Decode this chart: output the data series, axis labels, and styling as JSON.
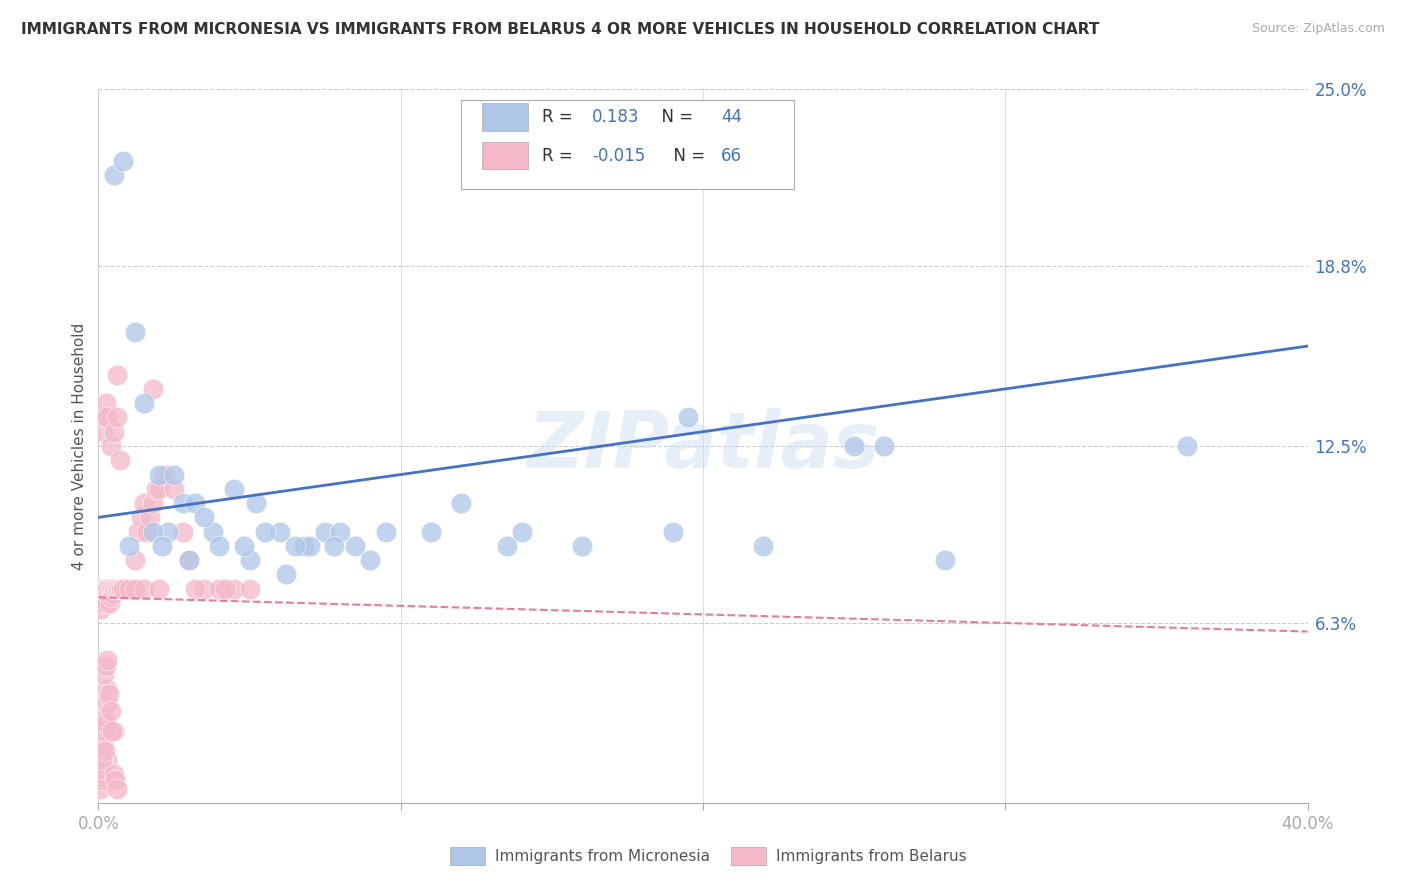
{
  "title": "IMMIGRANTS FROM MICRONESIA VS IMMIGRANTS FROM BELARUS 4 OR MORE VEHICLES IN HOUSEHOLD CORRELATION CHART",
  "source": "Source: ZipAtlas.com",
  "xlabel_micronesia": "Immigrants from Micronesia",
  "xlabel_belarus": "Immigrants from Belarus",
  "ylabel": "4 or more Vehicles in Household",
  "xlim": [
    0.0,
    40.0
  ],
  "ylim": [
    0.0,
    25.0
  ],
  "right_yticks": [
    6.3,
    12.5,
    18.8,
    25.0
  ],
  "xticks": [
    0.0,
    10.0,
    20.0,
    30.0,
    40.0
  ],
  "R_micronesia": 0.183,
  "N_micronesia": 44,
  "R_belarus": -0.015,
  "N_belarus": 66,
  "color_micronesia": "#aec6e8",
  "color_belarus": "#f4b8c8",
  "line_color_micronesia": "#4472c4",
  "line_color_belarus": "#e87b9a",
  "watermark": "ZIPatlas",
  "mic_trend_x0": 0,
  "mic_trend_y0": 10.0,
  "mic_trend_x1": 40,
  "mic_trend_y1": 16.0,
  "bel_trend_x0": 0,
  "bel_trend_y0": 7.2,
  "bel_trend_x1": 40,
  "bel_trend_y1": 6.0,
  "micronesia_x": [
    0.5,
    0.8,
    1.2,
    1.5,
    2.0,
    2.3,
    2.8,
    3.2,
    3.8,
    4.5,
    5.2,
    6.0,
    6.8,
    7.5,
    8.5,
    9.5,
    11.0,
    13.5,
    16.0,
    19.0,
    1.0,
    1.8,
    2.5,
    3.0,
    4.0,
    5.0,
    6.2,
    7.0,
    8.0,
    9.0,
    2.1,
    4.8,
    3.5,
    6.5,
    5.5,
    7.8,
    25.0,
    26.0,
    19.5,
    12.0,
    14.0,
    22.0,
    36.0,
    28.0
  ],
  "micronesia_y": [
    22.0,
    22.5,
    16.5,
    14.0,
    11.5,
    9.5,
    10.5,
    10.5,
    9.5,
    11.0,
    10.5,
    9.5,
    9.0,
    9.5,
    9.0,
    9.5,
    9.5,
    9.0,
    9.0,
    9.5,
    9.0,
    9.5,
    11.5,
    8.5,
    9.0,
    8.5,
    8.0,
    9.0,
    9.5,
    8.5,
    9.0,
    9.0,
    10.0,
    9.0,
    9.5,
    9.0,
    12.5,
    12.5,
    13.5,
    10.5,
    9.5,
    9.0,
    12.5,
    8.5
  ],
  "belarus_x": [
    0.05,
    0.08,
    0.1,
    0.12,
    0.15,
    0.18,
    0.2,
    0.22,
    0.25,
    0.28,
    0.3,
    0.32,
    0.35,
    0.38,
    0.4,
    0.42,
    0.45,
    0.48,
    0.5,
    0.55,
    0.6,
    0.65,
    0.7,
    0.75,
    0.8,
    0.85,
    0.9,
    0.95,
    1.0,
    1.1,
    1.2,
    1.3,
    1.4,
    1.5,
    1.6,
    1.7,
    1.8,
    1.9,
    2.0,
    2.2,
    2.5,
    2.8,
    3.0,
    3.5,
    4.0,
    4.5,
    0.15,
    0.2,
    0.25,
    0.3,
    0.4,
    0.5,
    0.6,
    0.7,
    0.8,
    1.0,
    1.2,
    1.5,
    2.0,
    3.2,
    5.0,
    0.6,
    1.8,
    4.2,
    0.3,
    0.5
  ],
  "belarus_y": [
    7.5,
    7.2,
    6.8,
    7.0,
    7.5,
    7.3,
    7.5,
    7.2,
    7.5,
    7.0,
    7.5,
    7.3,
    7.5,
    7.0,
    7.5,
    7.2,
    7.5,
    7.3,
    7.5,
    7.5,
    7.5,
    7.5,
    7.5,
    7.5,
    7.5,
    7.5,
    7.5,
    7.5,
    7.5,
    7.5,
    8.5,
    9.5,
    10.0,
    10.5,
    9.5,
    10.0,
    10.5,
    11.0,
    11.0,
    11.5,
    11.0,
    9.5,
    8.5,
    7.5,
    7.5,
    7.5,
    13.0,
    13.5,
    14.0,
    13.5,
    12.5,
    13.0,
    13.5,
    12.0,
    7.5,
    7.5,
    7.5,
    7.5,
    7.5,
    7.5,
    7.5,
    15.0,
    14.5,
    7.5,
    1.5,
    2.5
  ],
  "extra_bel_x": [
    0.05,
    0.08,
    0.1,
    0.12,
    0.15,
    0.18,
    0.2,
    0.22,
    0.25,
    0.28,
    0.3,
    0.35,
    0.4,
    0.45,
    0.5,
    0.55,
    0.6,
    0.2,
    0.25,
    0.3
  ],
  "extra_bel_y": [
    0.5,
    0.8,
    1.2,
    1.5,
    2.0,
    2.5,
    3.0,
    1.8,
    2.8,
    3.5,
    4.0,
    3.8,
    3.2,
    2.5,
    1.0,
    0.8,
    0.5,
    4.5,
    4.8,
    5.0
  ]
}
